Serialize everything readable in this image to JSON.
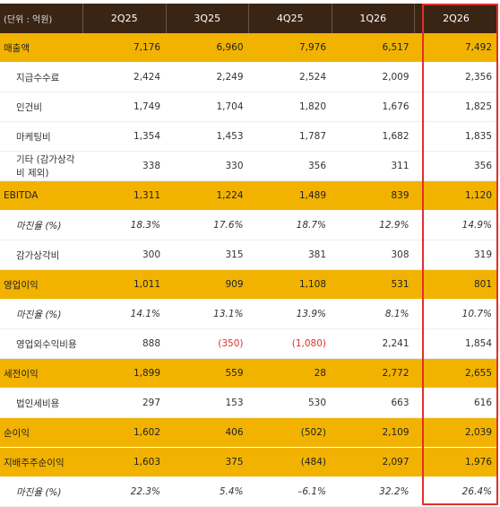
{
  "table": {
    "unit": "(단위 : 억원)",
    "columns": [
      "2Q25",
      "3Q25",
      "4Q25",
      "1Q26",
      "2Q26"
    ],
    "rows": [
      {
        "label": "매출액",
        "values": [
          "7,176",
          "6,960",
          "7,976",
          "6,517",
          "7,492"
        ],
        "highlight": true
      },
      {
        "label": "지급수수료",
        "values": [
          "2,424",
          "2,249",
          "2,524",
          "2,009",
          "2,356"
        ]
      },
      {
        "label": "인건비",
        "values": [
          "1,749",
          "1,704",
          "1,820",
          "1,676",
          "1,825"
        ]
      },
      {
        "label": "마케팅비",
        "values": [
          "1,354",
          "1,453",
          "1,787",
          "1,682",
          "1,835"
        ]
      },
      {
        "label": "기타 (감가상각비 제외)",
        "values": [
          "338",
          "330",
          "356",
          "311",
          "356"
        ]
      },
      {
        "label": "EBITDA",
        "values": [
          "1,311",
          "1,224",
          "1,489",
          "839",
          "1,120"
        ],
        "highlight": true
      },
      {
        "label": "마진율 (%)",
        "values": [
          "18.3%",
          "17.6%",
          "18.7%",
          "12.9%",
          "14.9%"
        ],
        "italic": true
      },
      {
        "label": "감가상각비",
        "values": [
          "300",
          "315",
          "381",
          "308",
          "319"
        ]
      },
      {
        "label": "영업이익",
        "values": [
          "1,011",
          "909",
          "1,108",
          "531",
          "801"
        ],
        "highlight": true
      },
      {
        "label": "마진율 (%)",
        "values": [
          "14.1%",
          "13.1%",
          "13.9%",
          "8.1%",
          "10.7%"
        ],
        "italic": true
      },
      {
        "label": "영업외수익비용",
        "values": [
          "888",
          "(350)",
          "(1,080)",
          "2,241",
          "1,854"
        ]
      },
      {
        "label": "세전이익",
        "values": [
          "1,899",
          "559",
          "28",
          "2,772",
          "2,655"
        ],
        "highlight": true
      },
      {
        "label": "법인세비용",
        "values": [
          "297",
          "153",
          "530",
          "663",
          "616"
        ]
      },
      {
        "label": "순이익",
        "values": [
          "1,602",
          "406",
          "(502)",
          "2,109",
          "2,039"
        ],
        "highlight": true
      },
      {
        "label": "지배주주순이익",
        "values": [
          "1,603",
          "375",
          "(484)",
          "2,097",
          "1,976"
        ],
        "highlight": true
      },
      {
        "label": "마진율 (%)",
        "values": [
          "22.3%",
          "5.4%",
          "–6.1%",
          "32.2%",
          "26.4%"
        ],
        "italic": true
      }
    ]
  }
}
